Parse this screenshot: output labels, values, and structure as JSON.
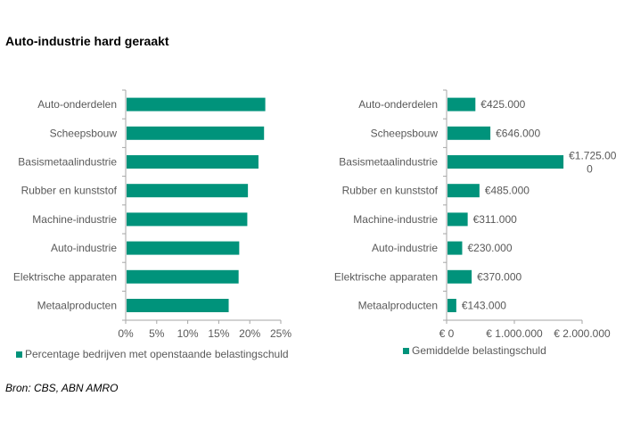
{
  "title": "Auto-industrie hard geraakt",
  "source": "Bron: CBS, ABN AMRO",
  "colors": {
    "bar": "#00937B",
    "axis": "#A6A6A6",
    "text": "#595959"
  },
  "chart_data": [
    {
      "type": "bar",
      "orientation": "horizontal",
      "categories": [
        "Auto-onderdelen",
        "Scheepsbouw",
        "Basismetaalindustrie",
        "Rubber en kunststof",
        "Machine-industrie",
        "Auto-industrie",
        "Elektrische apparaten",
        "Metaalproducten"
      ],
      "series": [
        {
          "name": "Percentage bedrijven met openstaande belastingschuld",
          "values": [
            22.5,
            22.3,
            21.4,
            19.7,
            19.6,
            18.3,
            18.2,
            16.6
          ]
        }
      ],
      "xlim": [
        0,
        25
      ],
      "x_ticks": [
        0,
        5,
        10,
        15,
        20,
        25
      ],
      "x_tick_labels": [
        "0%",
        "5%",
        "10%",
        "15%",
        "20%",
        "25%"
      ],
      "data_labels": [],
      "legend": "bottom"
    },
    {
      "type": "bar",
      "orientation": "horizontal",
      "categories": [
        "Auto-onderdelen",
        "Scheepsbouw",
        "Basismetaalindustrie",
        "Rubber en kunststof",
        "Machine-industrie",
        "Auto-industrie",
        "Elektrische apparaten",
        "Metaalproducten"
      ],
      "series": [
        {
          "name": "Gemiddelde belastingschuld",
          "values": [
            425000,
            646000,
            1725000,
            485000,
            311000,
            230000,
            370000,
            143000
          ]
        }
      ],
      "data_labels": [
        "€425.000",
        "€646.000",
        "€1.725.000",
        "€485.000",
        "€311.000",
        "€230.000",
        "€370.000",
        "€143.000"
      ],
      "xlim": [
        0,
        2000000
      ],
      "x_ticks": [
        0,
        1000000,
        2000000
      ],
      "x_tick_labels": [
        "€ 0",
        "€ 1.000.000",
        "€ 2.000.000"
      ],
      "legend": "bottom"
    }
  ]
}
